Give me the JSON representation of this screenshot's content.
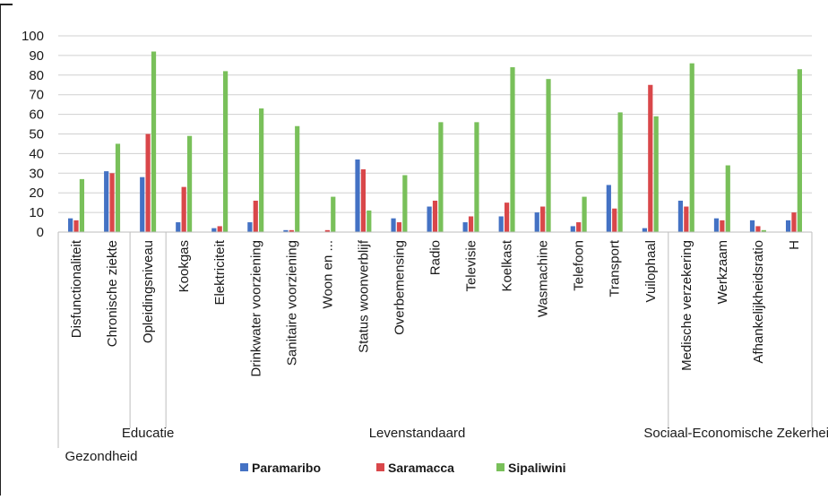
{
  "chart_data": {
    "type": "bar",
    "ylim": [
      0,
      100
    ],
    "yticks": [
      0,
      10,
      20,
      30,
      40,
      50,
      60,
      70,
      80,
      90,
      100
    ],
    "grid": true,
    "legend_position": "bottom",
    "colors": [
      "#4472c4",
      "#d9474a",
      "#79c05a"
    ],
    "categories": [
      "Disfunctionaliteit",
      "Chronische ziekte",
      "Opleidingsniveau",
      "Kookgas",
      "Elektriciteit",
      "Drinkwater voorziening",
      "Sanitaire voorziening",
      "Woon en ...",
      "Status woonverblijf",
      "Overbemensing",
      "Radio",
      "Televisie",
      "Koelkast",
      "Wasmachine",
      "Telefoon",
      "Transport",
      "Vuilophaal",
      "Medische verzekering",
      "Werkzaam",
      "Afhankelijkheidsratio",
      "H"
    ],
    "groups": [
      {
        "label": "Gezondheid",
        "start": 0,
        "end": 1
      },
      {
        "label": "Educatie",
        "start": 2,
        "end": 2
      },
      {
        "label": "Levenstandaard",
        "start": 3,
        "end": 16
      },
      {
        "label": "Sociaal-Economische Zekerheid",
        "start": 17,
        "end": 20
      }
    ],
    "series": [
      {
        "name": "Paramaribo",
        "values": [
          7,
          31,
          28,
          5,
          2,
          5,
          1,
          0,
          37,
          7,
          13,
          5,
          8,
          10,
          3,
          24,
          2,
          16,
          7,
          6,
          6
        ]
      },
      {
        "name": "Saramacca",
        "values": [
          6,
          30,
          50,
          23,
          3,
          16,
          1,
          1,
          32,
          5,
          16,
          8,
          15,
          13,
          5,
          12,
          75,
          13,
          6,
          3,
          10
        ]
      },
      {
        "name": "Sipaliwini",
        "values": [
          27,
          45,
          92,
          49,
          82,
          63,
          54,
          18,
          11,
          29,
          56,
          56,
          84,
          78,
          18,
          61,
          59,
          86,
          34,
          1,
          83
        ]
      }
    ]
  }
}
